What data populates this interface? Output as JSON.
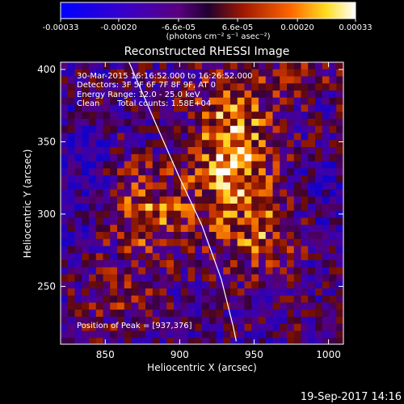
{
  "chart_data": {
    "type": "heatmap",
    "title": "Reconstructed RHESSI Image",
    "xlabel": "Heliocentric X (arcsec)",
    "ylabel": "Heliocentric Y (arcsec)",
    "xlim": [
      820,
      1010
    ],
    "ylim": [
      210,
      405
    ],
    "xticks": [
      850,
      900,
      950,
      1000
    ],
    "yticks": [
      250,
      300,
      350,
      400
    ],
    "colorbar": {
      "range": [
        -0.00033,
        0.00033
      ],
      "ticks": [
        "-0.00033",
        "-0.00020",
        "-6.6e-05",
        "6.6e-05",
        "0.00020",
        "0.00033"
      ],
      "tick_values": [
        -0.00033,
        -0.0002,
        -6.6e-05,
        6.6e-05,
        0.0002,
        0.00033
      ],
      "unit_label": "(photons cm⁻² s⁻¹ asec⁻²)",
      "colors": [
        "#0000ff",
        "#4a00b4",
        "#6a0060",
        "#2a0040",
        "#a02000",
        "#ff8800",
        "#ffee30",
        "#ffffff"
      ]
    },
    "limb": {
      "shape": "arc",
      "points": [
        [
          866,
          405
        ],
        [
          885,
          360
        ],
        [
          900,
          325
        ],
        [
          915,
          292
        ],
        [
          928,
          255
        ],
        [
          936,
          222
        ],
        [
          938,
          212
        ]
      ]
    },
    "annotations": {
      "time_range": "30-Mar-2015 16:16:52.000 to 16:26:52.000",
      "detectors": "Detectors: 3F 5F 6F 7F 8F 9F, AT 0",
      "energy_range": "Energy Range: 12.0 - 25.0 keV",
      "method": "Clean",
      "total_counts": "Total counts: 1.58E+04",
      "peak": "Position of Peak = [937,376]"
    },
    "peak_position": [
      937,
      376
    ],
    "grid": false
  },
  "footer": {
    "timestamp": "19-Sep-2017 14:16"
  }
}
